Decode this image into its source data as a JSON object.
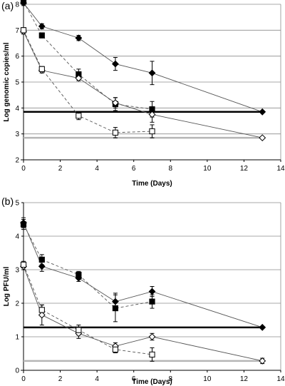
{
  "chart_data": [
    {
      "type": "line",
      "panel_label": "(a)",
      "xlabel": "Time (Days)",
      "ylabel": "Log genomic copies/ml",
      "xlim": [
        0,
        14
      ],
      "ylim": [
        2,
        8
      ],
      "xticks": [
        0,
        2,
        4,
        6,
        8,
        10,
        12,
        14
      ],
      "yticks": [
        2,
        3,
        4,
        5,
        6,
        7,
        8
      ],
      "grid": "horizontal",
      "series": [
        {
          "marker": "diamond-filled",
          "dash": false,
          "color": "#000000",
          "x": [
            0,
            1,
            3,
            5,
            7,
            13
          ],
          "y": [
            8.05,
            7.15,
            6.7,
            5.7,
            5.35,
            3.85
          ],
          "err": [
            0.1,
            0.1,
            0.1,
            0.25,
            0.45,
            0
          ]
        },
        {
          "marker": "square-filled",
          "dash": true,
          "color": "#000000",
          "x": [
            0,
            1,
            3,
            5,
            7
          ],
          "y": [
            8.1,
            6.8,
            5.3,
            4.15,
            3.95
          ],
          "err": [
            0.1,
            0.1,
            0.2,
            0.25,
            0.3
          ]
        },
        {
          "marker": "diamond-open",
          "dash": false,
          "color": "#000000",
          "x": [
            0,
            1,
            3,
            5,
            7,
            13
          ],
          "y": [
            6.95,
            5.45,
            5.15,
            4.2,
            3.75,
            2.85
          ],
          "err": [
            0.1,
            0.1,
            0.1,
            0.2,
            0.3,
            0
          ]
        },
        {
          "marker": "square-open",
          "dash": true,
          "color": "#000000",
          "x": [
            0,
            1,
            3,
            5,
            7
          ],
          "y": [
            7.0,
            5.5,
            3.7,
            3.05,
            3.1
          ],
          "err": [
            0.1,
            0.1,
            0.15,
            0.2,
            0.25
          ]
        }
      ],
      "reference_lines": [
        {
          "y": 3.85,
          "color": "#000000",
          "width": 2.5
        },
        {
          "y": 2.85,
          "color": "#b5b5b5",
          "width": 2.5
        }
      ]
    },
    {
      "type": "line",
      "panel_label": "(b)",
      "xlabel": "Time (Days)",
      "ylabel": "Log PFU/ml",
      "xlim": [
        0,
        14
      ],
      "ylim": [
        0,
        5
      ],
      "xticks": [
        0,
        2,
        4,
        6,
        8,
        10,
        12,
        14
      ],
      "yticks": [
        0,
        1,
        2,
        3,
        4,
        5
      ],
      "grid": "horizontal",
      "series": [
        {
          "marker": "diamond-filled",
          "dash": false,
          "color": "#000000",
          "x": [
            0,
            1,
            3,
            5,
            7,
            13
          ],
          "y": [
            4.4,
            3.1,
            2.75,
            2.05,
            2.35,
            1.28
          ],
          "err": [
            0.15,
            0.15,
            0.1,
            0.25,
            0.15,
            0
          ]
        },
        {
          "marker": "square-filled",
          "dash": true,
          "color": "#000000",
          "x": [
            0,
            1,
            3,
            5,
            7
          ],
          "y": [
            4.35,
            3.3,
            2.85,
            1.85,
            2.05
          ],
          "err": [
            0.15,
            0.15,
            0.1,
            0.4,
            0.2
          ]
        },
        {
          "marker": "diamond-open",
          "dash": false,
          "color": "#000000",
          "x": [
            0,
            1,
            3,
            5,
            7,
            13
          ],
          "y": [
            3.1,
            1.65,
            1.1,
            0.72,
            1.0,
            0.28
          ],
          "err": [
            0.1,
            0.3,
            0.15,
            0.1,
            0.1,
            0.08
          ]
        },
        {
          "marker": "square-open",
          "dash": true,
          "color": "#000000",
          "x": [
            0,
            1,
            3,
            5,
            7
          ],
          "y": [
            3.15,
            1.8,
            1.2,
            0.62,
            0.47
          ],
          "err": [
            0.1,
            0.15,
            0.15,
            0.1,
            0.2
          ]
        }
      ],
      "reference_lines": [
        {
          "y": 1.28,
          "color": "#000000",
          "width": 2.5
        },
        {
          "y": 0.28,
          "color": "#b5b5b5",
          "width": 2.5
        }
      ]
    }
  ]
}
